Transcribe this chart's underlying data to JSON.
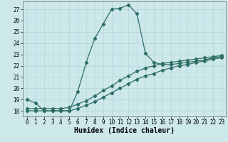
{
  "xlabel": "Humidex (Indice chaleur)",
  "ylabel": "",
  "xlim": [
    -0.5,
    23.5
  ],
  "ylim": [
    17.5,
    27.7
  ],
  "yticks": [
    18,
    19,
    20,
    21,
    22,
    23,
    24,
    25,
    26,
    27
  ],
  "xticks": [
    0,
    1,
    2,
    3,
    4,
    5,
    6,
    7,
    8,
    9,
    10,
    11,
    12,
    13,
    14,
    15,
    16,
    17,
    18,
    19,
    20,
    21,
    22,
    23
  ],
  "bg_color": "#cde8eb",
  "grid_color": "#b8d8dc",
  "line_color": "#2d6e65",
  "line1_x": [
    0,
    1,
    2,
    3,
    4,
    5,
    6,
    7,
    8,
    9,
    10,
    11,
    12,
    13,
    14,
    15,
    16,
    17,
    18,
    19,
    20,
    21,
    22,
    23
  ],
  "line1_y": [
    19.0,
    18.7,
    18.0,
    18.0,
    18.0,
    18.0,
    19.7,
    22.3,
    24.4,
    25.7,
    27.0,
    27.1,
    27.4,
    26.6,
    23.1,
    22.3,
    22.1,
    22.1,
    22.2,
    22.3,
    22.4,
    22.5,
    22.7,
    22.8
  ],
  "line2_x": [
    0,
    1,
    2,
    3,
    4,
    5,
    6,
    7,
    8,
    9,
    10,
    11,
    12,
    13,
    14,
    15,
    16,
    17,
    18,
    19,
    20,
    21,
    22,
    23
  ],
  "line2_y": [
    18.0,
    18.0,
    18.0,
    18.0,
    18.0,
    18.0,
    18.2,
    18.5,
    18.8,
    19.2,
    19.6,
    20.0,
    20.4,
    20.8,
    21.1,
    21.3,
    21.6,
    21.8,
    22.0,
    22.1,
    22.3,
    22.4,
    22.6,
    22.7
  ],
  "line3_x": [
    0,
    1,
    2,
    3,
    4,
    5,
    6,
    7,
    8,
    9,
    10,
    11,
    12,
    13,
    14,
    15,
    16,
    17,
    18,
    19,
    20,
    21,
    22,
    23
  ],
  "line3_y": [
    18.2,
    18.2,
    18.2,
    18.2,
    18.2,
    18.3,
    18.6,
    18.9,
    19.3,
    19.8,
    20.2,
    20.7,
    21.1,
    21.5,
    21.8,
    22.0,
    22.2,
    22.3,
    22.4,
    22.5,
    22.6,
    22.7,
    22.8,
    22.9
  ],
  "marker_size": 2.2,
  "line_width": 0.9,
  "font_size_label": 7,
  "font_size_tick": 5.5
}
